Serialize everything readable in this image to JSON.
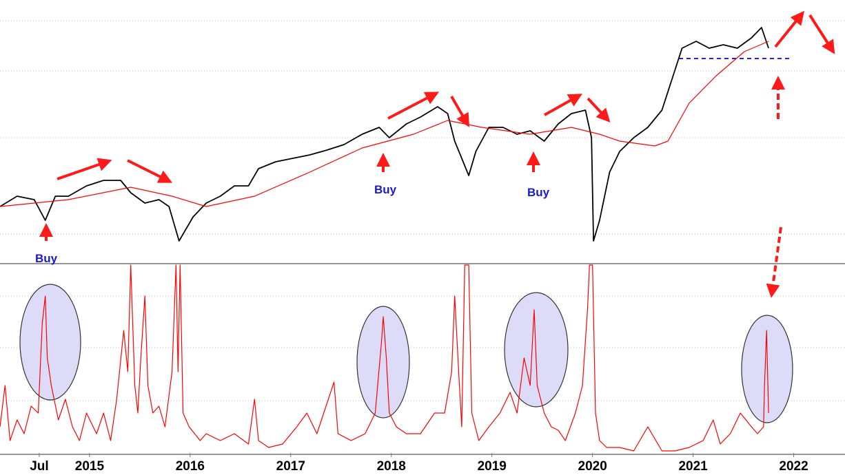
{
  "chart_data": [
    {
      "type": "line",
      "xlim": [
        2014.11,
        2022.51
      ],
      "ylim": [
        0,
        385
      ],
      "annotations": [
        "Buy",
        "Buy",
        "Buy"
      ],
      "series": [
        {
          "color": "#000000",
          "x": [
            2014.11,
            2014.28,
            2014.45,
            2014.56,
            2014.66,
            2014.79,
            2014.97,
            2015.14,
            2015.31,
            2015.41,
            2015.55,
            2015.69,
            2015.79,
            2015.89,
            2016.03,
            2016.16,
            2016.3,
            2016.44,
            2016.58,
            2016.68,
            2016.85,
            2017.02,
            2017.19,
            2017.36,
            2017.53,
            2017.71,
            2017.88,
            2017.98,
            2018.15,
            2018.29,
            2018.46,
            2018.56,
            2018.63,
            2018.77,
            2018.84,
            2018.97,
            2019.11,
            2019.25,
            2019.38,
            2019.52,
            2019.66,
            2019.79,
            2019.93,
            2019.99,
            2020.01,
            2020.07,
            2020.17,
            2020.27,
            2020.41,
            2020.55,
            2020.69,
            2020.79,
            2020.89,
            2021.03,
            2021.16,
            2021.3,
            2021.44,
            2021.58,
            2021.68,
            2021.75
          ],
          "values": [
            85,
            100,
            95,
            65,
            100,
            100,
            115,
            123,
            123,
            105,
            90,
            95,
            85,
            35,
            70,
            90,
            100,
            115,
            115,
            140,
            150,
            155,
            160,
            167,
            175,
            190,
            200,
            185,
            205,
            215,
            230,
            220,
            180,
            130,
            165,
            200,
            200,
            190,
            195,
            180,
            205,
            220,
            225,
            185,
            35,
            65,
            135,
            165,
            185,
            200,
            225,
            270,
            315,
            325,
            315,
            320,
            315,
            330,
            345,
            315
          ]
        },
        {
          "color": "#ff0000",
          "x": [
            2014.11,
            2014.79,
            2015.41,
            2015.82,
            2016.16,
            2016.64,
            2017.19,
            2017.71,
            2018.22,
            2018.56,
            2018.9,
            2019.38,
            2019.79,
            2020.07,
            2020.27,
            2020.62,
            2020.75,
            2020.96,
            2021.23,
            2021.51,
            2021.75
          ],
          "values": [
            85,
            95,
            113,
            100,
            85,
            100,
            135,
            170,
            190,
            210,
            200,
            190,
            200,
            190,
            180,
            173,
            180,
            235,
            275,
            310,
            325
          ]
        }
      ]
    },
    {
      "type": "line",
      "xlim": [
        2014.11,
        2022.51
      ],
      "ylim": [
        0,
        273
      ],
      "xticks": [
        {
          "value": 2014.5,
          "label": "Jul"
        },
        2015,
        2016,
        2017,
        2018,
        2019,
        2020,
        2021,
        2022
      ],
      "series": [
        {
          "color": "#ff0000",
          "x": [
            2014.11,
            2014.16,
            2014.21,
            2014.28,
            2014.35,
            2014.42,
            2014.49,
            2014.53,
            2014.56,
            2014.58,
            2014.62,
            2014.69,
            2014.76,
            2014.83,
            2014.9,
            2014.97,
            2015.07,
            2015.14,
            2015.21,
            2015.27,
            2015.34,
            2015.38,
            2015.41,
            2015.45,
            2015.48,
            2015.51,
            2015.55,
            2015.58,
            2015.63,
            2015.69,
            2015.75,
            2015.82,
            2015.86,
            2015.88,
            2015.9,
            2015.93,
            2015.99,
            2016.1,
            2016.16,
            2016.3,
            2016.44,
            2016.58,
            2016.64,
            2016.68,
            2016.78,
            2016.92,
            2017.06,
            2017.16,
            2017.26,
            2017.43,
            2017.47,
            2017.6,
            2017.74,
            2017.84,
            2017.9,
            2017.92,
            2017.95,
            2017.98,
            2018.05,
            2018.15,
            2018.29,
            2018.43,
            2018.53,
            2018.6,
            2018.63,
            2018.67,
            2018.7,
            2018.73,
            2018.77,
            2018.8,
            2018.87,
            2018.97,
            2019.08,
            2019.18,
            2019.25,
            2019.32,
            2019.38,
            2019.42,
            2019.45,
            2019.52,
            2019.59,
            2019.66,
            2019.73,
            2019.83,
            2019.9,
            2019.95,
            2019.97,
            2020.0,
            2020.03,
            2020.07,
            2020.14,
            2020.27,
            2020.41,
            2020.55,
            2020.69,
            2020.82,
            2020.96,
            2021.1,
            2021.2,
            2021.27,
            2021.37,
            2021.47,
            2021.58,
            2021.64,
            2021.7,
            2021.71,
            2021.73,
            2021.75
          ],
          "values": [
            38,
            98,
            18,
            48,
            28,
            68,
            58,
            188,
            228,
            138,
            98,
            48,
            78,
            38,
            18,
            58,
            28,
            58,
            18,
            78,
            178,
            118,
            273,
            98,
            58,
            138,
            228,
            98,
            58,
            68,
            38,
            118,
            273,
            118,
            273,
            58,
            38,
            18,
            28,
            18,
            28,
            13,
            78,
            18,
            8,
            13,
            38,
            58,
            28,
            103,
            28,
            18,
            28,
            58,
            158,
            198,
            138,
            58,
            38,
            28,
            28,
            58,
            58,
            118,
            228,
            118,
            38,
            273,
            273,
            58,
            18,
            38,
            58,
            88,
            58,
            138,
            98,
            208,
            98,
            58,
            38,
            33,
            18,
            58,
            98,
            208,
            273,
            273,
            58,
            18,
            8,
            8,
            3,
            38,
            3,
            3,
            8,
            18,
            48,
            13,
            28,
            58,
            38,
            28,
            38,
            98,
            178,
            58
          ]
        }
      ]
    }
  ]
}
